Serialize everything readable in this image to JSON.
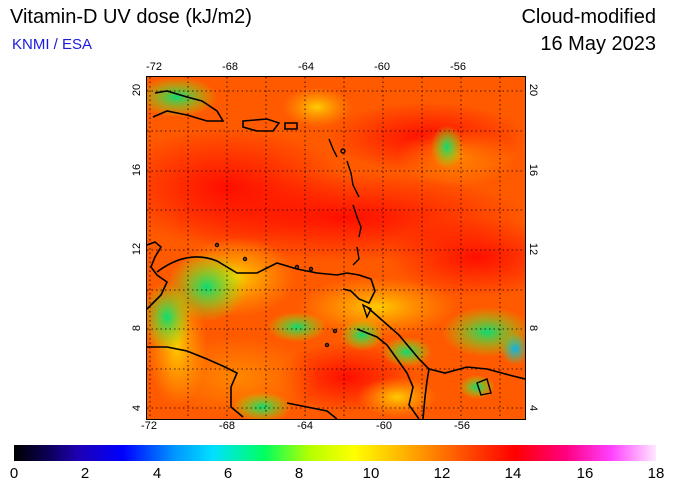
{
  "title": "Vitamin-D UV dose (kJ/m2)",
  "source": "KNMI / ESA",
  "mode": "Cloud-modified",
  "date": "16 May 2023",
  "map": {
    "lon_range": [
      -73,
      -53
    ],
    "lat_range": [
      3.5,
      20.5
    ],
    "lon_ticks": [
      "-72",
      "-68",
      "-64",
      "-60",
      "-56"
    ],
    "lat_ticks": [
      "20",
      "16",
      "12",
      "8",
      "4"
    ],
    "grid_style": "dotted"
  },
  "colorbar": {
    "min": 0,
    "max": 18,
    "labels": [
      "0",
      "2",
      "4",
      "6",
      "8",
      "10",
      "12",
      "14",
      "16",
      "18"
    ]
  },
  "colors": {
    "title_text": "#000000",
    "source_text": "#1a1adc",
    "dominant_field": "#ff5a00",
    "high_field": "#ff1010",
    "low_field": "#00e080"
  }
}
